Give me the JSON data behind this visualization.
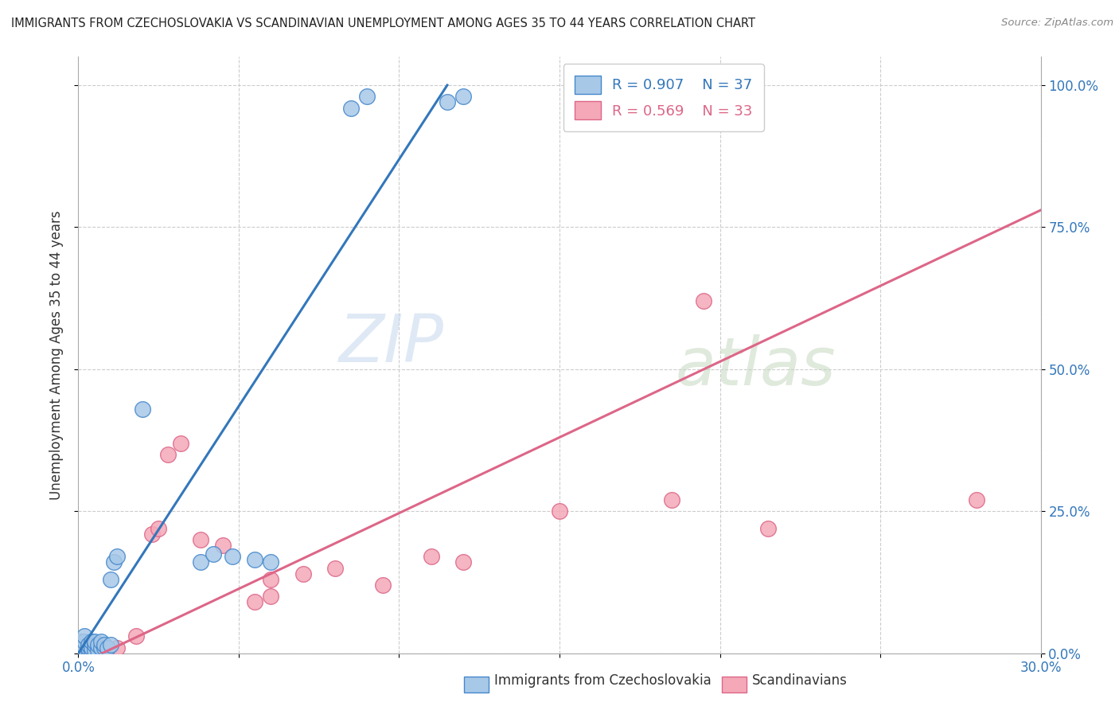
{
  "title": "IMMIGRANTS FROM CZECHOSLOVAKIA VS SCANDINAVIAN UNEMPLOYMENT AMONG AGES 35 TO 44 YEARS CORRELATION CHART",
  "source": "Source: ZipAtlas.com",
  "ylabel": "Unemployment Among Ages 35 to 44 years",
  "xlim": [
    0.0,
    0.3
  ],
  "ylim": [
    0.0,
    1.05
  ],
  "xticks": [
    0.0,
    0.05,
    0.1,
    0.15,
    0.2,
    0.25,
    0.3
  ],
  "yticks_right": [
    0.0,
    0.25,
    0.5,
    0.75,
    1.0
  ],
  "blue_R": 0.907,
  "blue_N": 37,
  "pink_R": 0.569,
  "pink_N": 33,
  "blue_color": "#a8c8e8",
  "pink_color": "#f4a8b8",
  "blue_edge_color": "#4488cc",
  "pink_edge_color": "#dd6688",
  "blue_line_color": "#3377bb",
  "pink_line_color": "#dd6688",
  "background_color": "#ffffff",
  "watermark_zip": "ZIP",
  "watermark_atlas": "atlas",
  "blue_scatter_x": [
    0.001,
    0.001,
    0.001,
    0.002,
    0.002,
    0.002,
    0.002,
    0.003,
    0.003,
    0.003,
    0.004,
    0.004,
    0.004,
    0.005,
    0.005,
    0.005,
    0.006,
    0.006,
    0.007,
    0.007,
    0.008,
    0.008,
    0.009,
    0.01,
    0.01,
    0.011,
    0.012,
    0.02,
    0.038,
    0.042,
    0.048,
    0.055,
    0.06,
    0.085,
    0.09,
    0.115,
    0.12
  ],
  "blue_scatter_y": [
    0.01,
    0.015,
    0.02,
    0.005,
    0.01,
    0.02,
    0.03,
    0.005,
    0.01,
    0.015,
    0.005,
    0.01,
    0.02,
    0.005,
    0.015,
    0.02,
    0.005,
    0.015,
    0.01,
    0.02,
    0.01,
    0.015,
    0.01,
    0.015,
    0.13,
    0.16,
    0.17,
    0.43,
    0.16,
    0.175,
    0.17,
    0.165,
    0.16,
    0.96,
    0.98,
    0.97,
    0.98
  ],
  "blue_line_x": [
    0.0,
    0.115
  ],
  "blue_line_y": [
    0.0,
    1.0
  ],
  "pink_scatter_x": [
    0.001,
    0.001,
    0.002,
    0.002,
    0.003,
    0.003,
    0.004,
    0.004,
    0.005,
    0.006,
    0.007,
    0.008,
    0.012,
    0.018,
    0.023,
    0.025,
    0.028,
    0.032,
    0.038,
    0.045,
    0.055,
    0.06,
    0.06,
    0.07,
    0.08,
    0.095,
    0.11,
    0.12,
    0.15,
    0.185,
    0.195,
    0.215,
    0.28
  ],
  "pink_scatter_y": [
    0.005,
    0.01,
    0.005,
    0.015,
    0.005,
    0.01,
    0.005,
    0.015,
    0.005,
    0.005,
    0.005,
    0.005,
    0.01,
    0.03,
    0.21,
    0.22,
    0.35,
    0.37,
    0.2,
    0.19,
    0.09,
    0.13,
    0.1,
    0.14,
    0.15,
    0.12,
    0.17,
    0.16,
    0.25,
    0.27,
    0.62,
    0.22,
    0.27
  ],
  "pink_line_x": [
    0.0,
    0.3
  ],
  "pink_line_y": [
    -0.02,
    0.78
  ]
}
